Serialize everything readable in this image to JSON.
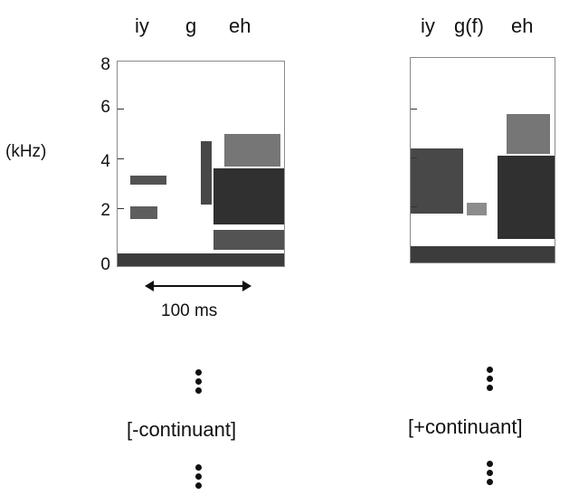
{
  "left_panel": {
    "segments": [
      "iy",
      "g",
      "eh"
    ],
    "y_ticks": [
      "8",
      "6",
      "4",
      "2",
      "0"
    ],
    "y_unit": "(kHz)",
    "scale_label": "100 ms",
    "feature": "[-continuant]"
  },
  "right_panel": {
    "segments": [
      "iy",
      "g(f)",
      "eh"
    ],
    "feature": "[+continuant]"
  },
  "colors": {
    "ink": "#111111",
    "frame": "#8a8a8a",
    "energy": "#1a1a1a"
  }
}
